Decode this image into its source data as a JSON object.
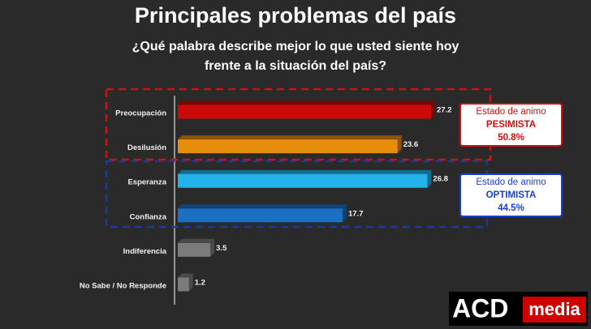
{
  "chart_data": {
    "type": "bar",
    "orientation": "horizontal",
    "title": "Principales problemas del país",
    "subtitle": "¿Qué palabra describe mejor lo que usted siente hoy frente a la situación del país?",
    "categories": [
      "Preocupación",
      "Desilusión",
      "Esperanza",
      "Confianza",
      "Indiferencia",
      "No Sabe / No Responde"
    ],
    "values": [
      27.2,
      23.6,
      26.8,
      17.7,
      3.5,
      1.2
    ],
    "colors": [
      "#cc0a0a",
      "#e88c0c",
      "#22b2ec",
      "#1b6fc2",
      "#7b7b7b",
      "#7b7b7b"
    ],
    "annotations": [
      {
        "label": "Estado de animo",
        "state": "PESIMISTA",
        "share": "50.8%",
        "color": "#d11010"
      },
      {
        "label": "Estado de animo",
        "state": "OPTIMISTA",
        "share": "44.5%",
        "color": "#1a3fd0"
      }
    ]
  },
  "logo": {
    "left": "ACD",
    "right": "media"
  }
}
